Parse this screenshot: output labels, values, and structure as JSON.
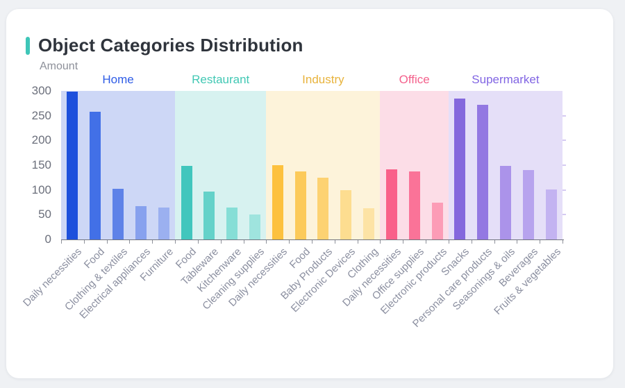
{
  "card": {
    "title": "Object Categories Distribution",
    "accent_color": "#3ec6b8",
    "background": "#ffffff",
    "page_background": "#eff1f4"
  },
  "chart_data": {
    "type": "bar",
    "title": "Object Categories Distribution",
    "ylabel": "Amount",
    "xlabel": "",
    "ylim": [
      0,
      300
    ],
    "y_ticks": [
      0,
      50,
      100,
      150,
      200,
      250,
      300
    ],
    "grid": false,
    "legend_position": "none",
    "x_labels_rotation_deg": -45,
    "axis": {
      "line_color": "#70737d",
      "tick_color": "#8f929b",
      "y_tick_label_color": "#6b6f7b",
      "x_tick_label_color": "#8b8fa0"
    },
    "groups": [
      {
        "name": "Home",
        "label_color": "#2e5ce6",
        "band_color": "#cdd7f6",
        "categories": [
          "Daily necessities",
          "Food",
          "Clothing & textiles",
          "Electrical appliances",
          "Furniture"
        ],
        "values": [
          298,
          258,
          102,
          68,
          64
        ],
        "bar_colors": [
          "#1d50dc",
          "#4270e7",
          "#5e82e8",
          "#87a1ee",
          "#9bb0f0"
        ]
      },
      {
        "name": "Restaurant",
        "label_color": "#41c8b4",
        "band_color": "#d7f2f0",
        "categories": [
          "Food",
          "Tableware",
          "Kitchenware",
          "Cleaning supplies"
        ],
        "values": [
          148,
          97,
          65,
          50
        ],
        "bar_colors": [
          "#41c6bd",
          "#64d2c9",
          "#86ded6",
          "#9fe4de"
        ]
      },
      {
        "name": "Industry",
        "label_color": "#e8b33c",
        "band_color": "#fdf3da",
        "categories": [
          "Daily necessities",
          "Food",
          "Baby Products",
          "Electronic Devices",
          "Clothing"
        ],
        "values": [
          150,
          138,
          125,
          99,
          63
        ],
        "bar_colors": [
          "#fdc13e",
          "#fcca5a",
          "#fdd272",
          "#fddd90",
          "#fde3a5"
        ]
      },
      {
        "name": "Office",
        "label_color": "#f4618c",
        "band_color": "#fcdde7",
        "categories": [
          "Daily necessities",
          "Office supplies",
          "Electronic products"
        ],
        "values": [
          142,
          138,
          74
        ],
        "bar_colors": [
          "#f9608a",
          "#fa7398",
          "#fc9cb6"
        ]
      },
      {
        "name": "Supermarket",
        "label_color": "#8165e3",
        "band_color": "#e5dff8",
        "categories": [
          "Snacks",
          "Personal care products",
          "Seasonings & oils",
          "Beverages",
          "Fruits & vegetables"
        ],
        "values": [
          285,
          272,
          148,
          140,
          101
        ],
        "bar_colors": [
          "#8468dd",
          "#9378e2",
          "#ab93ea",
          "#b7a3ee",
          "#c3b3f1"
        ]
      }
    ]
  }
}
